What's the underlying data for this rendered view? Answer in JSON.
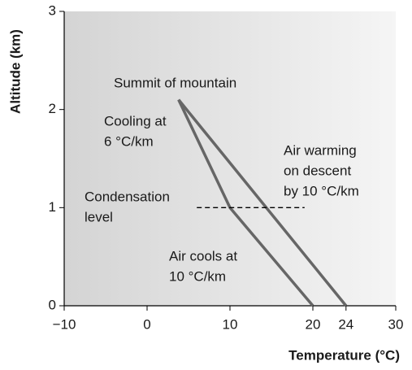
{
  "chart_data": {
    "type": "line",
    "x_label": "Temperature (°C)",
    "y_label": "Altitude (km)",
    "xlim": [
      -10,
      30
    ],
    "xticks": [
      {
        "value": -10,
        "label": "−10"
      },
      0,
      10,
      20,
      24,
      30
    ],
    "ylim": [
      0,
      3
    ],
    "yticks": [
      0,
      1,
      2,
      3
    ],
    "series": [
      {
        "color": "#666666",
        "x": [
          20,
          10,
          3.8
        ],
        "values": [
          0,
          1,
          2.1
        ]
      },
      {
        "color": "#666666",
        "x": [
          3.8,
          24
        ],
        "values": [
          2.1,
          0
        ]
      },
      {
        "color": "#000000",
        "dashed": true,
        "x": [
          6,
          19
        ],
        "values": [
          1,
          1
        ]
      }
    ],
    "annotations": [
      [
        "Summit of mountain"
      ],
      [
        "Cooling at",
        "6 °C/km"
      ],
      [
        "Air warming",
        "on descent",
        "by 10 °C/km"
      ],
      [
        "Condensation",
        "level"
      ],
      [
        "Air cools at",
        "10 °C/km"
      ]
    ]
  }
}
